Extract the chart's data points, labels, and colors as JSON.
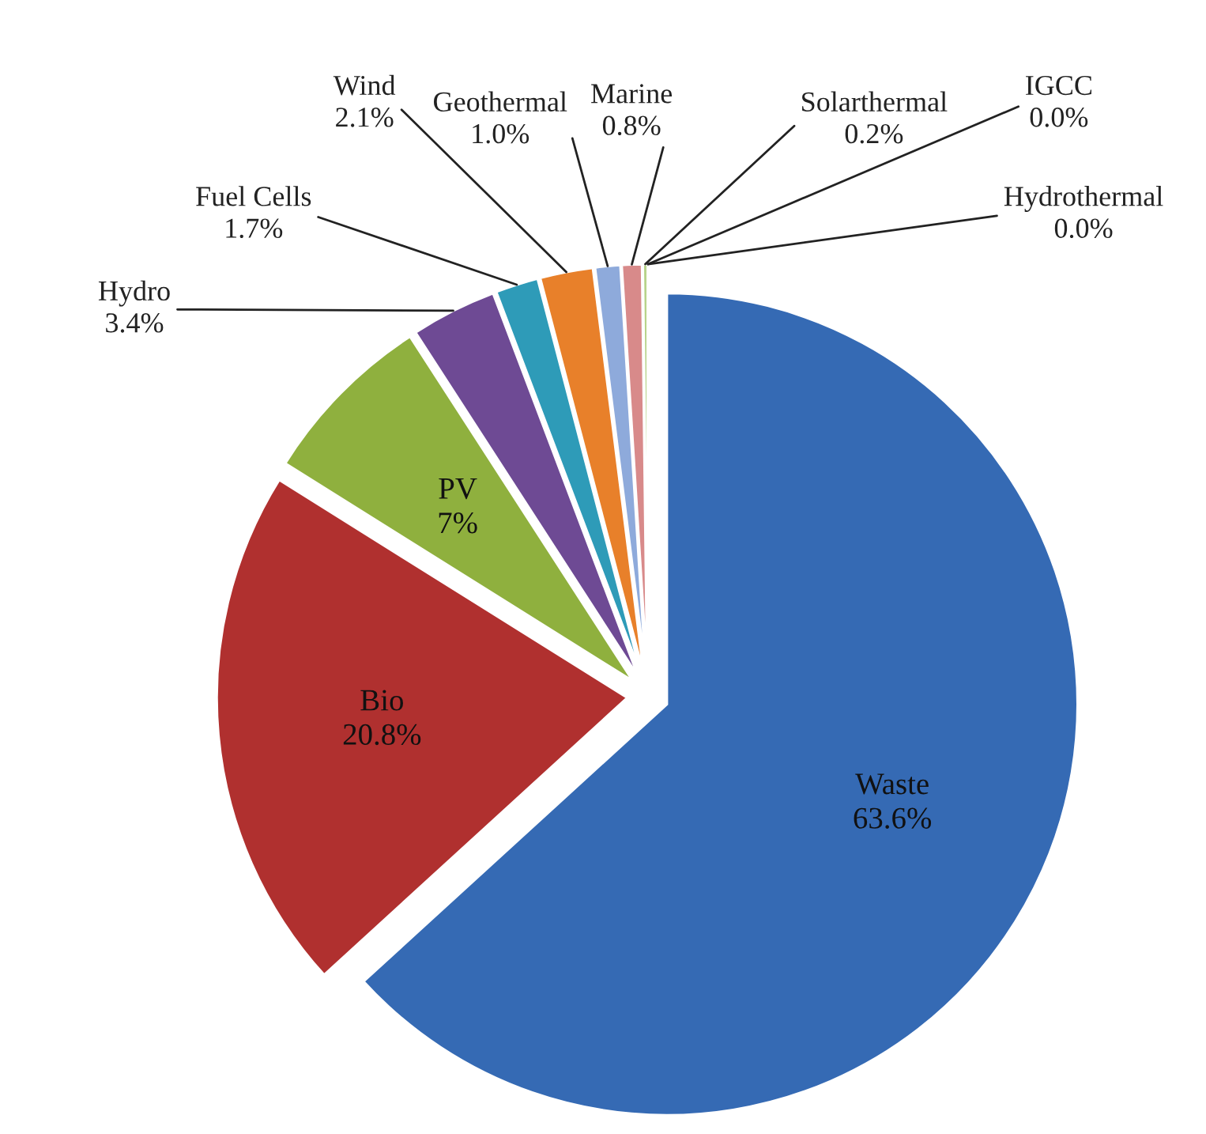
{
  "chart_data": {
    "type": "pie",
    "categories": [
      "Waste",
      "Bio",
      "PV",
      "Hydro",
      "Fuel Cells",
      "Wind",
      "Geothermal",
      "Marine",
      "Solarthermal",
      "IGCC",
      "Hydrothermal"
    ],
    "values": [
      63.6,
      20.8,
      7,
      3.4,
      1.7,
      2.1,
      1.0,
      0.8,
      0.2,
      0.0,
      0.0
    ],
    "value_labels": [
      "63.6%",
      "20.8%",
      "7%",
      "3.4%",
      "1.7%",
      "2.1%",
      "1.0%",
      "0.8%",
      "0.2%",
      "0.0%",
      "0.0%"
    ],
    "colors": [
      "#356ab4",
      "#b0302f",
      "#8fb03e",
      "#6e4a94",
      "#2e9bb8",
      "#e8802a",
      "#8eaadb",
      "#d88a8a",
      "#b7d38a",
      "#9bbb59",
      "#c0c0c0"
    ],
    "legend": false
  }
}
